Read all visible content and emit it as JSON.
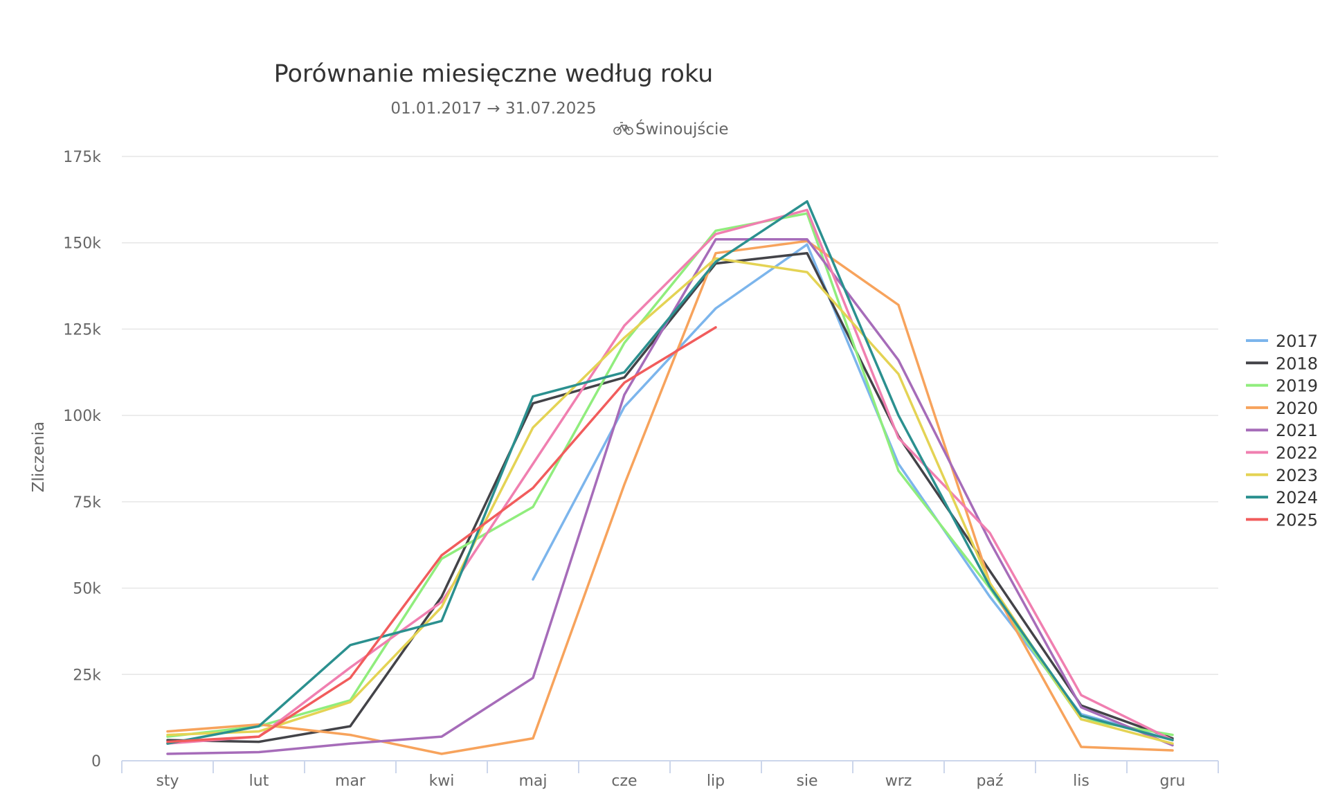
{
  "chart_data": {
    "type": "line",
    "title": "Porównanie miesięczne według roku",
    "subtitle": "01.01.2017 → 31.07.2025",
    "location": "Świnoujście",
    "location_icon": "bicycle-icon",
    "ylabel": "Zliczenia",
    "xlabel": "",
    "ylim": [
      0,
      175000
    ],
    "yticks": [
      0,
      25000,
      50000,
      75000,
      100000,
      125000,
      150000,
      175000
    ],
    "ytick_labels": [
      "0",
      "25k",
      "50k",
      "75k",
      "100k",
      "125k",
      "150k",
      "175k"
    ],
    "categories": [
      "sty",
      "lut",
      "mar",
      "kwi",
      "maj",
      "cze",
      "lip",
      "sie",
      "wrz",
      "paź",
      "lis",
      "gru"
    ],
    "grid": true,
    "legend_position": "right",
    "series": [
      {
        "name": "2017",
        "color": "#7cb5ec",
        "values": [
          null,
          null,
          null,
          null,
          52500,
          102500,
          131000,
          149500,
          86000,
          47500,
          13500,
          6000
        ]
      },
      {
        "name": "2018",
        "color": "#434348",
        "values": [
          6000,
          5500,
          10000,
          47500,
          103500,
          111000,
          144000,
          147000,
          94000,
          55000,
          16000,
          6500
        ]
      },
      {
        "name": "2019",
        "color": "#90ed7d",
        "values": [
          7000,
          10000,
          17500,
          58500,
          73500,
          121000,
          153500,
          158500,
          84000,
          50000,
          12000,
          7500
        ]
      },
      {
        "name": "2020",
        "color": "#f7a35c",
        "values": [
          8500,
          10500,
          7500,
          2000,
          6500,
          80000,
          147000,
          150500,
          132000,
          51500,
          4000,
          3000
        ]
      },
      {
        "name": "2021",
        "color": "#a66cb9",
        "values": [
          2000,
          2500,
          5000,
          7000,
          24000,
          106000,
          151000,
          151000,
          116000,
          63500,
          15500,
          4500
        ]
      },
      {
        "name": "2022",
        "color": "#f07fb0",
        "values": [
          5000,
          7000,
          27000,
          46000,
          86000,
          126000,
          152500,
          159500,
          93500,
          66000,
          19000,
          6000
        ]
      },
      {
        "name": "2023",
        "color": "#e4d354",
        "values": [
          7500,
          8500,
          17000,
          44500,
          96500,
          122500,
          145500,
          141500,
          112000,
          51500,
          12000,
          5000
        ]
      },
      {
        "name": "2024",
        "color": "#2b908f",
        "values": [
          5000,
          10000,
          33500,
          40500,
          105500,
          112500,
          144500,
          162000,
          100000,
          50500,
          13000,
          6000
        ]
      },
      {
        "name": "2025",
        "color": "#f15c5c",
        "values": [
          5500,
          7000,
          24000,
          59500,
          79000,
          109500,
          125500,
          null,
          null,
          null,
          null,
          null
        ]
      }
    ]
  }
}
